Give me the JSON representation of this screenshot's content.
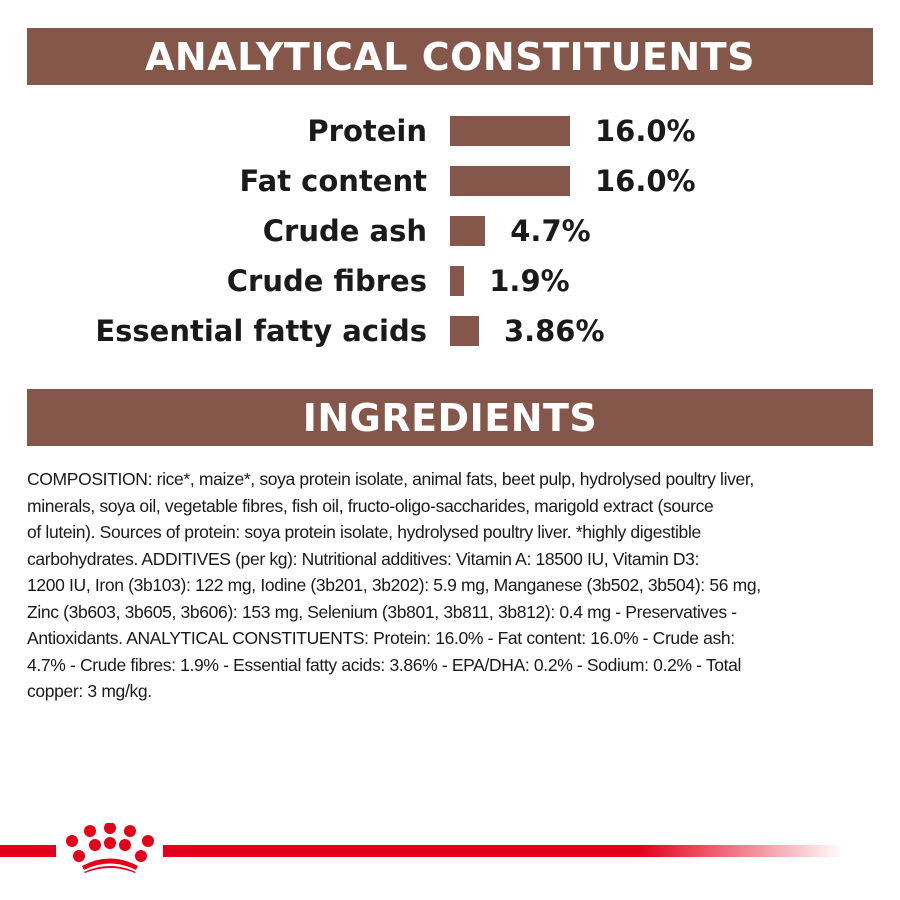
{
  "brand_color": "#85574a",
  "accent_red": "#e2001a",
  "analytical": {
    "title": "ANALYTICAL CONSTITUENTS",
    "items": [
      {
        "label": "Protein",
        "value_text": "16.0%",
        "value": 16.0
      },
      {
        "label": "Fat content",
        "value_text": "16.0%",
        "value": 16.0
      },
      {
        "label": "Crude ash",
        "value_text": "4.7%",
        "value": 4.7
      },
      {
        "label": "Crude fibres",
        "value_text": "1.9%",
        "value": 1.9
      },
      {
        "label": "Essential fatty acids",
        "value_text": "3.86%",
        "value": 3.86
      }
    ]
  },
  "ingredients": {
    "title": "INGREDIENTS",
    "lines": [
      "COMPOSITION: rice*, maize*, soya protein isolate, animal fats, beet pulp, hydrolysed poultry liver,",
      "minerals, soya oil, vegetable fibres, fish oil, fructo-oligo-saccharides, marigold extract (source",
      "of lutein). Sources of protein: soya protein isolate, hydrolysed poultry liver. *highly digestible",
      "carbohydrates. ADDITIVES (per kg): Nutritional additives: Vitamin A: 18500 IU, Vitamin D3:",
      "1200 IU, Iron (3b103): 122 mg, Iodine (3b201, 3b202): 5.9 mg, Manganese (3b502, 3b504): 56 mg,",
      "Zinc (3b603, 3b605, 3b606): 153 mg, Selenium (3b801, 3b811, 3b812): 0.4 mg - Preservatives -",
      "Antioxidants. ANALYTICAL CONSTITUENTS: Protein: 16.0% - Fat content: 16.0% - Crude ash:",
      "4.7% - Crude fibres: 1.9% - Essential fatty acids: 3.86% - EPA/DHA: 0.2% - Sodium: 0.2% - Total",
      "copper: 3 mg/kg."
    ]
  },
  "footer": {
    "logo_icon": "royal-canin-crown-icon"
  }
}
